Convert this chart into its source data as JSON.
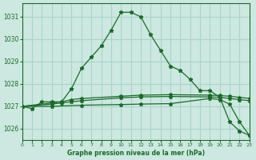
{
  "title": "Graphe pression niveau de la mer (hPa)",
  "background_color": "#cce8e0",
  "grid_color": "#aad4c8",
  "line_color": "#1a6b2a",
  "xlim": [
    0,
    23
  ],
  "ylim": [
    1025.5,
    1031.6
  ],
  "yticks": [
    1026,
    1027,
    1028,
    1029,
    1030,
    1031
  ],
  "xticks": [
    0,
    1,
    2,
    3,
    4,
    5,
    6,
    7,
    8,
    9,
    10,
    11,
    12,
    13,
    14,
    15,
    16,
    17,
    18,
    19,
    20,
    21,
    22,
    23
  ],
  "series": [
    {
      "x": [
        0,
        1,
        2,
        3,
        4,
        5,
        6,
        7,
        8,
        9,
        10,
        11,
        12,
        13,
        14,
        15,
        16,
        17,
        18,
        19,
        20,
        21,
        22,
        23
      ],
      "y": [
        1027.0,
        1026.9,
        1027.2,
        1027.2,
        1027.2,
        1027.8,
        1028.7,
        1029.2,
        1029.7,
        1030.4,
        1031.2,
        1031.2,
        1031.0,
        1030.2,
        1029.5,
        1028.8,
        1028.6,
        1028.2,
        1027.7,
        1027.7,
        1027.4,
        1026.3,
        1025.9,
        1025.7
      ]
    },
    {
      "x": [
        0,
        3,
        4,
        5,
        6,
        10,
        12,
        15,
        19,
        20,
        21,
        22,
        23
      ],
      "y": [
        1027.0,
        1027.15,
        1027.2,
        1027.3,
        1027.35,
        1027.45,
        1027.5,
        1027.52,
        1027.5,
        1027.48,
        1027.45,
        1027.4,
        1027.35
      ]
    },
    {
      "x": [
        0,
        3,
        4,
        5,
        6,
        10,
        12,
        15,
        19,
        20,
        21,
        22,
        23
      ],
      "y": [
        1027.0,
        1027.1,
        1027.15,
        1027.2,
        1027.25,
        1027.38,
        1027.42,
        1027.44,
        1027.42,
        1027.4,
        1027.35,
        1027.3,
        1027.25
      ]
    },
    {
      "x": [
        0,
        3,
        6,
        10,
        12,
        15,
        19,
        20,
        21,
        22,
        23
      ],
      "y": [
        1027.0,
        1027.0,
        1027.05,
        1027.08,
        1027.1,
        1027.12,
        1027.35,
        1027.3,
        1027.1,
        1026.3,
        1025.7
      ]
    }
  ]
}
